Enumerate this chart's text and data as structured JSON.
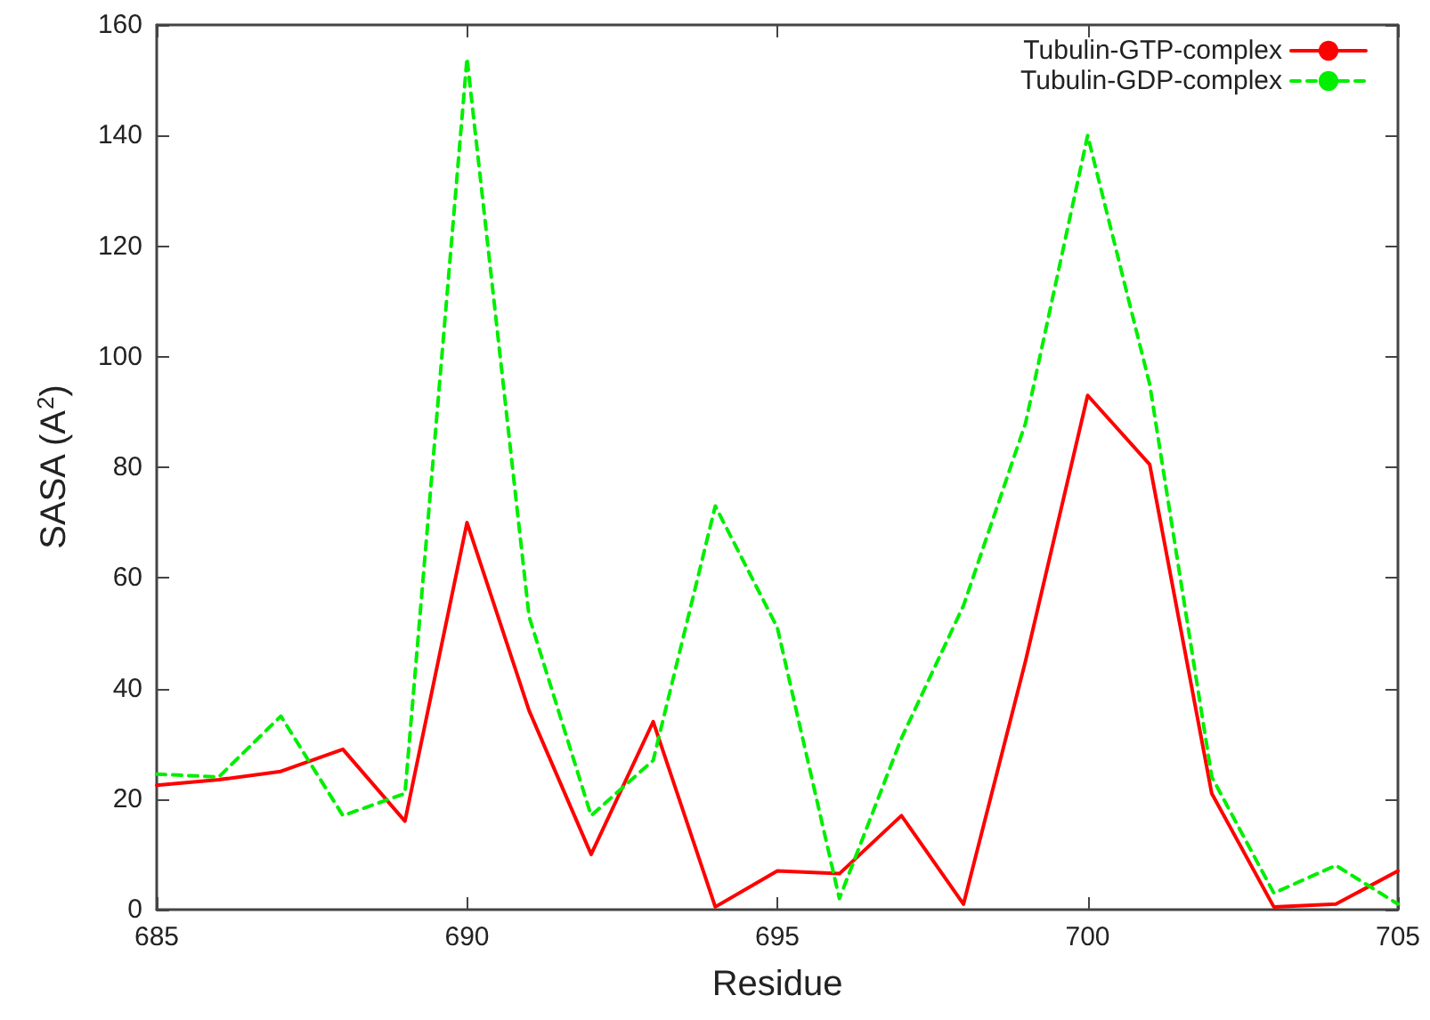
{
  "chart_data": {
    "type": "line",
    "xlabel": "Residue",
    "ylabel": "SASA (A$^{2}$)",
    "x": [
      685,
      686,
      687,
      688,
      689,
      690,
      691,
      692,
      693,
      694,
      695,
      696,
      697,
      698,
      699,
      700,
      701,
      702,
      703,
      704,
      705
    ],
    "series": [
      {
        "name": "Tubulin-GTP-complex",
        "color": "#ff0000",
        "line_style": "solid",
        "values": [
          22.5,
          23.5,
          25,
          29,
          16,
          70,
          36,
          10,
          34,
          0.5,
          7,
          6.5,
          17,
          1,
          45,
          93,
          80.5,
          21,
          0.5,
          1,
          7
        ]
      },
      {
        "name": "Tubulin-GDP-complex",
        "color": "#00ee00",
        "line_style": "dashed",
        "values": [
          24.5,
          24,
          35,
          17,
          21,
          154,
          53,
          17,
          27,
          73,
          51,
          2,
          31,
          55,
          88,
          140,
          95,
          24,
          3,
          8,
          1
        ]
      }
    ],
    "xlim": [
      685,
      705
    ],
    "xticks": [
      685,
      690,
      695,
      700,
      705
    ],
    "ylim": [
      0,
      160
    ],
    "yticks": [
      0,
      20,
      40,
      60,
      80,
      100,
      120,
      140,
      160
    ],
    "grid": false,
    "legend": "top right",
    "marker": "none"
  }
}
